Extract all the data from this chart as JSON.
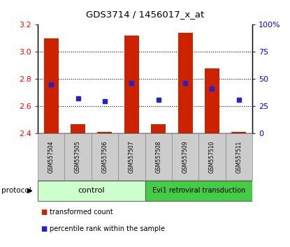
{
  "title": "GDS3714 / 1456017_x_at",
  "samples": [
    "GSM557504",
    "GSM557505",
    "GSM557506",
    "GSM557507",
    "GSM557508",
    "GSM557509",
    "GSM557510",
    "GSM557511"
  ],
  "bar_bottom": 2.4,
  "bar_top": [
    3.1,
    2.47,
    2.41,
    3.12,
    2.47,
    3.14,
    2.88,
    2.41
  ],
  "blue_y": [
    2.76,
    2.66,
    2.635,
    2.77,
    2.645,
    2.77,
    2.73,
    2.645
  ],
  "ylim": [
    2.4,
    3.2
  ],
  "yticks_left": [
    2.4,
    2.6,
    2.8,
    3.0,
    3.2
  ],
  "yticks_right_vals": [
    0,
    25,
    50,
    75,
    100
  ],
  "yticks_right_labels": [
    "0",
    "25",
    "50",
    "75",
    "100%"
  ],
  "bar_color": "#cc2200",
  "blue_color": "#2222cc",
  "control_label": "control",
  "treatment_label": "Evi1 retroviral transduction",
  "protocol_label": "protocol",
  "legend_transformed": "transformed count",
  "legend_percentile": "percentile rank within the sample",
  "control_bg": "#ccffcc",
  "treatment_bg": "#44cc44",
  "sample_bg": "#cccccc",
  "n_control": 4,
  "n_treatment": 4
}
